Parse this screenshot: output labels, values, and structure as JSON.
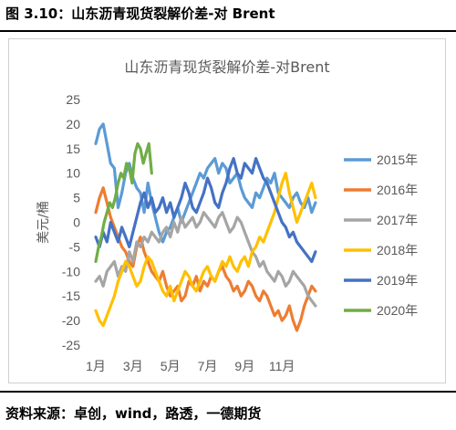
{
  "caption": "图 3.10：山东沥青现货裂解价差-对 Brent",
  "source": "资料来源：卓创，wind，路透，一德期货",
  "chart_data": {
    "type": "line",
    "title": "山东沥青现货裂解价差-对Brent",
    "ylabel": "美元/桶",
    "xlabel": "",
    "ylim": [
      -25,
      25
    ],
    "y_ticks": [
      25,
      20,
      15,
      10,
      5,
      0,
      -5,
      -10,
      -15,
      -20,
      -25
    ],
    "x_ticks": [
      {
        "label": "1月",
        "month": 1
      },
      {
        "label": "3月",
        "month": 3
      },
      {
        "label": "5月",
        "month": 5
      },
      {
        "label": "7月",
        "month": 7
      },
      {
        "label": "9月",
        "month": 9
      },
      {
        "label": "11月",
        "month": 11
      }
    ],
    "x_range": [
      1,
      13
    ],
    "grid": false,
    "legend_position": "right",
    "series": [
      {
        "name": "2015年",
        "color": "#5B9BD5",
        "x": [
          1.0,
          1.2,
          1.4,
          1.6,
          1.8,
          2.0,
          2.2,
          2.4,
          2.6,
          2.8,
          3.0,
          3.2,
          3.4,
          3.6,
          3.8,
          4.0,
          4.2,
          4.4,
          4.6,
          4.8,
          5.0,
          5.2,
          5.4,
          5.6,
          5.8,
          6.0,
          6.2,
          6.4,
          6.6,
          6.8,
          7.0,
          7.2,
          7.4,
          7.6,
          7.8,
          8.0,
          8.2,
          8.4,
          8.6,
          8.8,
          9.0,
          9.2,
          9.4,
          9.6,
          9.8,
          10.0,
          10.2,
          10.4,
          10.6,
          10.8,
          11.0,
          11.2,
          11.4,
          11.6,
          11.8,
          12.0,
          12.2,
          12.4,
          12.6,
          12.8
        ],
        "y": [
          16,
          19,
          20,
          16,
          12,
          11,
          3,
          6,
          10,
          12,
          9,
          7,
          6,
          2,
          8,
          4,
          1,
          -2,
          -4,
          -2,
          -1,
          1,
          3,
          0,
          2,
          4,
          6,
          8,
          10,
          9,
          11,
          12,
          13,
          10,
          12,
          11,
          8,
          9,
          10,
          7,
          5,
          4,
          3,
          6,
          5,
          7,
          9,
          8,
          10,
          6,
          5,
          4,
          3,
          5,
          6,
          4,
          3,
          5,
          2,
          4
        ]
      },
      {
        "name": "2016年",
        "color": "#ED7D31",
        "x": [
          1.0,
          1.2,
          1.4,
          1.6,
          1.8,
          2.0,
          2.2,
          2.4,
          2.6,
          2.8,
          3.0,
          3.2,
          3.4,
          3.6,
          3.8,
          4.0,
          4.2,
          4.4,
          4.6,
          4.8,
          5.0,
          5.2,
          5.4,
          5.6,
          5.8,
          6.0,
          6.2,
          6.4,
          6.6,
          6.8,
          7.0,
          7.2,
          7.4,
          7.6,
          7.8,
          8.0,
          8.2,
          8.4,
          8.6,
          8.8,
          9.0,
          9.2,
          9.4,
          9.6,
          9.8,
          10.0,
          10.2,
          10.4,
          10.6,
          10.8,
          11.0,
          11.2,
          11.4,
          11.6,
          11.8,
          12.0,
          12.2,
          12.4,
          12.6,
          12.8
        ],
        "y": [
          2,
          5,
          7,
          4,
          1,
          -1,
          -3,
          -5,
          -6,
          -8,
          -9,
          -5,
          -3,
          -6,
          -8,
          -10,
          -11,
          -12,
          -10,
          -13,
          -15,
          -14,
          -13,
          -16,
          -15,
          -12,
          -13,
          -11,
          -14,
          -12,
          -13,
          -11,
          -12,
          -10,
          -9,
          -11,
          -12,
          -14,
          -13,
          -15,
          -14,
          -12,
          -13,
          -15,
          -16,
          -14,
          -15,
          -17,
          -19,
          -18,
          -20,
          -19,
          -17,
          -20,
          -22,
          -20,
          -17,
          -15,
          -13,
          -14
        ]
      },
      {
        "name": "2017年",
        "color": "#A5A5A5",
        "x": [
          1.0,
          1.2,
          1.4,
          1.6,
          1.8,
          2.0,
          2.2,
          2.4,
          2.6,
          2.8,
          3.0,
          3.2,
          3.4,
          3.6,
          3.8,
          4.0,
          4.2,
          4.4,
          4.6,
          4.8,
          5.0,
          5.2,
          5.4,
          5.6,
          5.8,
          6.0,
          6.2,
          6.4,
          6.6,
          6.8,
          7.0,
          7.2,
          7.4,
          7.6,
          7.8,
          8.0,
          8.2,
          8.4,
          8.6,
          8.8,
          9.0,
          9.2,
          9.4,
          9.6,
          9.8,
          10.0,
          10.2,
          10.4,
          10.6,
          10.8,
          11.0,
          11.2,
          11.4,
          11.6,
          11.8,
          12.0,
          12.2,
          12.4,
          12.6,
          12.8
        ],
        "y": [
          -12,
          -11,
          -13,
          -10,
          -9,
          -8,
          -11,
          -9,
          -10,
          -6,
          -8,
          -4,
          -5,
          -3,
          -4,
          -2,
          -3,
          -4,
          -2,
          -1,
          -3,
          0,
          -2,
          1,
          -1,
          0,
          1,
          -1,
          0,
          2,
          1,
          0,
          -1,
          1,
          2,
          0,
          -2,
          -1,
          1,
          0,
          -2,
          -4,
          -6,
          -7,
          -9,
          -8,
          -10,
          -11,
          -12,
          -10,
          -11,
          -13,
          -12,
          -10,
          -11,
          -12,
          -13,
          -15,
          -16,
          -17
        ]
      },
      {
        "name": "2018年",
        "color": "#FFC000",
        "x": [
          1.0,
          1.2,
          1.4,
          1.6,
          1.8,
          2.0,
          2.2,
          2.4,
          2.6,
          2.8,
          3.0,
          3.2,
          3.4,
          3.6,
          3.8,
          4.0,
          4.2,
          4.4,
          4.6,
          4.8,
          5.0,
          5.2,
          5.4,
          5.6,
          5.8,
          6.0,
          6.2,
          6.4,
          6.6,
          6.8,
          7.0,
          7.2,
          7.4,
          7.6,
          7.8,
          8.0,
          8.2,
          8.4,
          8.6,
          8.8,
          9.0,
          9.2,
          9.4,
          9.6,
          9.8,
          10.0,
          10.2,
          10.4,
          10.6,
          10.8,
          11.0,
          11.2,
          11.4,
          11.6,
          11.8,
          12.0,
          12.2,
          12.4,
          12.6,
          12.8
        ],
        "y": [
          -18,
          -20,
          -21,
          -19,
          -17,
          -15,
          -12,
          -10,
          -8,
          -9,
          -11,
          -13,
          -12,
          -9,
          -7,
          -8,
          -10,
          -12,
          -14,
          -15,
          -13,
          -16,
          -14,
          -12,
          -10,
          -11,
          -13,
          -14,
          -12,
          -10,
          -9,
          -11,
          -12,
          -10,
          -8,
          -9,
          -7,
          -9,
          -10,
          -8,
          -7,
          -9,
          -6,
          -5,
          -3,
          -4,
          -2,
          0,
          2,
          5,
          8,
          10,
          6,
          3,
          0,
          2,
          4,
          6,
          8,
          5
        ]
      },
      {
        "name": "2019年",
        "color": "#4472C4",
        "x": [
          1.0,
          1.2,
          1.4,
          1.6,
          1.8,
          2.0,
          2.2,
          2.4,
          2.6,
          2.8,
          3.0,
          3.2,
          3.4,
          3.6,
          3.8,
          4.0,
          4.2,
          4.4,
          4.6,
          4.8,
          5.0,
          5.2,
          5.4,
          5.6,
          5.8,
          6.0,
          6.2,
          6.4,
          6.6,
          6.8,
          7.0,
          7.2,
          7.4,
          7.6,
          7.8,
          8.0,
          8.2,
          8.4,
          8.6,
          8.8,
          9.0,
          9.2,
          9.4,
          9.6,
          9.8,
          10.0,
          10.2,
          10.4,
          10.6,
          10.8,
          11.0,
          11.2,
          11.4,
          11.6,
          11.8,
          12.0,
          12.2,
          12.4,
          12.6,
          12.8
        ],
        "y": [
          -3,
          -5,
          -2,
          -4,
          0,
          -2,
          -4,
          -1,
          -3,
          -5,
          -2,
          1,
          4,
          6,
          3,
          5,
          2,
          3,
          5,
          2,
          4,
          1,
          3,
          5,
          8,
          6,
          3,
          2,
          4,
          6,
          9,
          7,
          4,
          3,
          6,
          8,
          11,
          13,
          10,
          9,
          12,
          11,
          10,
          13,
          11,
          9,
          8,
          6,
          4,
          2,
          0,
          -1,
          -3,
          -2,
          -4,
          -5,
          -6,
          -7,
          -8,
          -6
        ]
      },
      {
        "name": "2020年",
        "color": "#70AD47",
        "x": [
          1.0,
          1.15,
          1.3,
          1.45,
          1.6,
          1.75,
          1.9,
          2.05,
          2.2,
          2.35,
          2.5,
          2.65,
          2.8,
          2.95,
          3.1,
          3.25,
          3.4,
          3.55,
          3.7,
          3.85,
          4.0
        ],
        "y": [
          -8,
          -5,
          -3,
          0,
          2,
          4,
          3,
          5,
          8,
          10,
          9,
          12,
          11,
          8,
          14,
          16,
          15,
          12,
          14,
          16,
          10
        ]
      }
    ]
  }
}
